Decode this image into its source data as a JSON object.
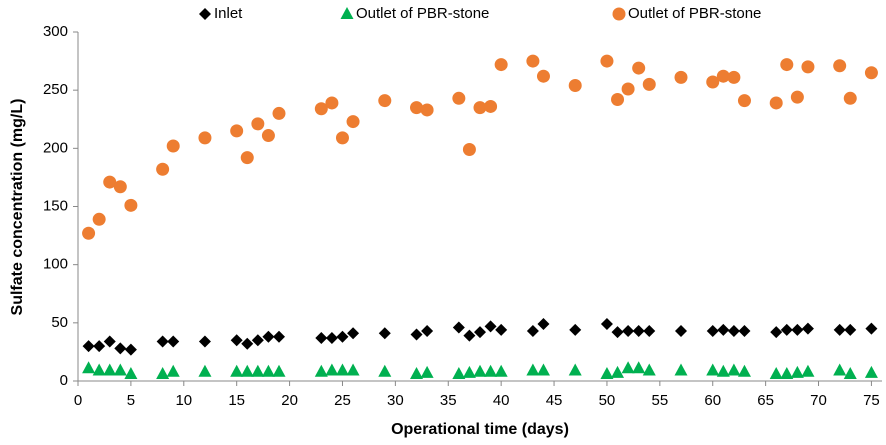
{
  "chart_data": {
    "type": "scatter",
    "x_label": "Operational time (days)",
    "y_label": "Sulfate concentration (mg/L)",
    "x": [
      1,
      2,
      3,
      4,
      5,
      8,
      9,
      12,
      15,
      16,
      17,
      18,
      19,
      23,
      24,
      25,
      26,
      29,
      32,
      33,
      36,
      37,
      38,
      39,
      40,
      43,
      44,
      47,
      50,
      51,
      52,
      53,
      54,
      57,
      60,
      61,
      62,
      63,
      66,
      67,
      68,
      69,
      72,
      73,
      75
    ],
    "series": [
      {
        "name": "Inlet",
        "color": "#000000",
        "marker": "diamond",
        "values": [
          30,
          30,
          34,
          28,
          27,
          34,
          34,
          34,
          35,
          32,
          35,
          38,
          38,
          37,
          37,
          38,
          41,
          41,
          40,
          43,
          46,
          39,
          42,
          47,
          44,
          43,
          49,
          44,
          49,
          42,
          43,
          43,
          43,
          43,
          43,
          44,
          43,
          43,
          42,
          44,
          44,
          45,
          44,
          44,
          45
        ]
      },
      {
        "name": "Outlet of PBR-stone",
        "color": "#00b050",
        "marker": "triangle",
        "values": [
          11,
          9,
          9,
          9,
          6,
          6,
          8,
          8,
          8,
          8,
          8,
          8,
          8,
          8,
          9,
          9,
          9,
          8,
          6,
          7,
          6,
          7,
          8,
          8,
          8,
          9,
          9,
          9,
          6,
          7,
          11,
          11,
          9,
          9,
          9,
          8,
          9,
          8,
          6,
          6,
          7,
          8,
          9,
          6,
          7
        ]
      },
      {
        "name": "Outlet of PBR-stone",
        "color": "#ed7d31",
        "marker": "circle",
        "values": [
          127,
          139,
          171,
          167,
          151,
          182,
          202,
          209,
          215,
          192,
          221,
          211,
          230,
          234,
          239,
          209,
          223,
          241,
          235,
          233,
          243,
          199,
          235,
          236,
          272,
          275,
          262,
          254,
          275,
          242,
          251,
          269,
          255,
          261,
          257,
          262,
          261,
          241,
          239,
          272,
          244,
          270,
          271,
          243,
          265
        ]
      }
    ],
    "xlim": [
      0,
      76
    ],
    "xticks": [
      0,
      5,
      10,
      15,
      20,
      25,
      30,
      35,
      40,
      45,
      50,
      55,
      60,
      65,
      70,
      75
    ],
    "ylim": [
      0,
      300
    ],
    "yticks": [
      0,
      50,
      100,
      150,
      200,
      250,
      300
    ],
    "grid": false,
    "legend": "top"
  }
}
